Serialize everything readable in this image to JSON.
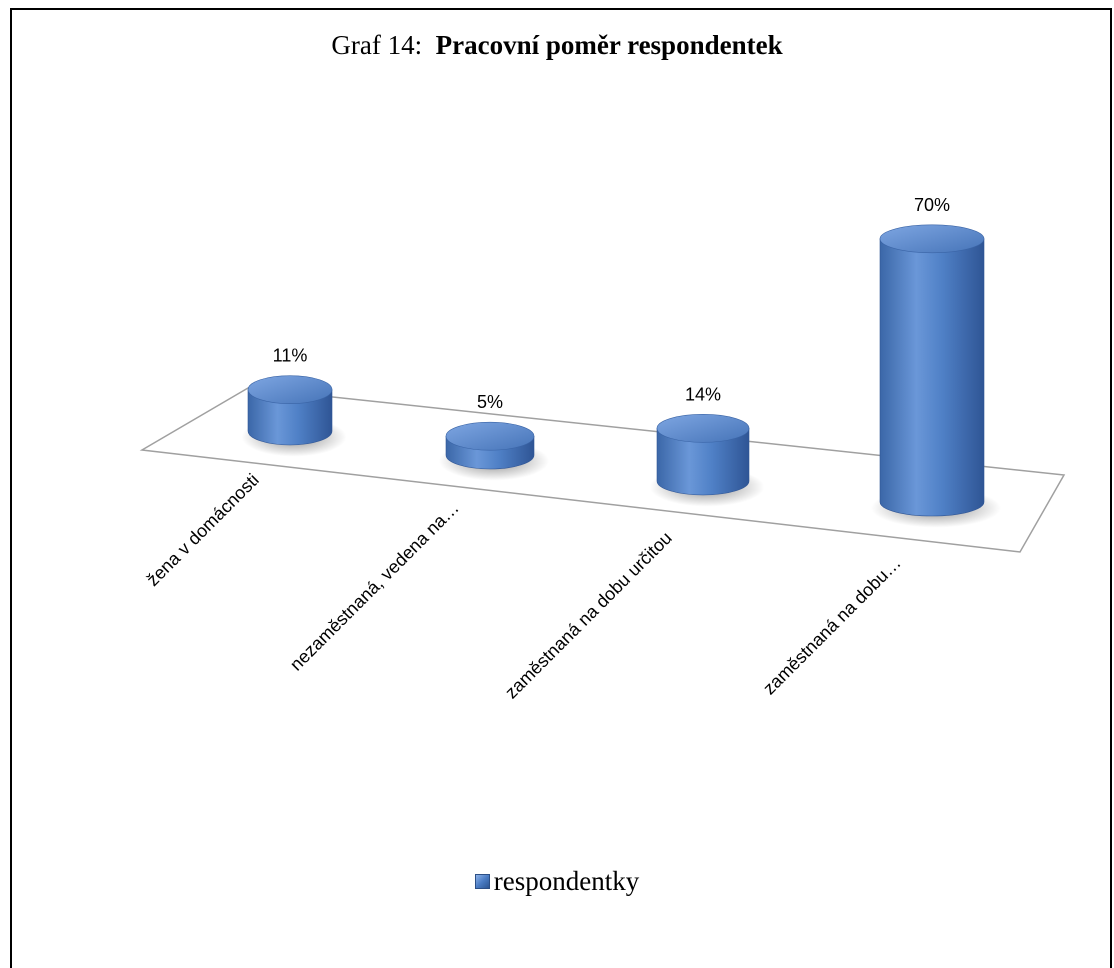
{
  "chart_data": {
    "type": "bar",
    "title_prefix": "Graf  14:",
    "title": "Pracovní poměr respondentek",
    "categories": [
      "žena v domácnosti",
      "nezaměstnaná, vedena na…",
      "zaměstnaná na dobu určitou",
      "zaměstnaná na dobu…"
    ],
    "series": [
      {
        "name": "respondentky",
        "values": [
          11,
          5,
          14,
          70
        ]
      }
    ],
    "data_labels": [
      "11%",
      "5%",
      "14%",
      "70%"
    ],
    "unit": "%",
    "bar_shape": "cylinder-3d",
    "bar_color": "#4a7cc4",
    "legend_position": "bottom",
    "grid": false
  }
}
